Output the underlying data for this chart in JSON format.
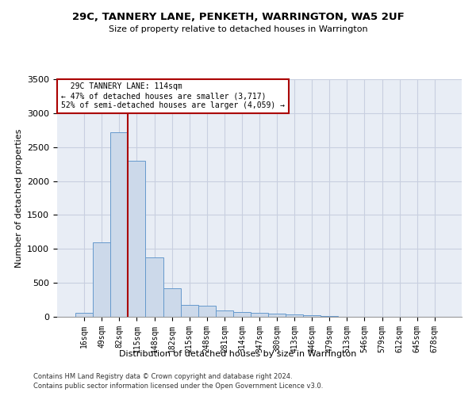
{
  "title": "29C, TANNERY LANE, PENKETH, WARRINGTON, WA5 2UF",
  "subtitle": "Size of property relative to detached houses in Warrington",
  "xlabel": "Distribution of detached houses by size in Warrington",
  "ylabel": "Number of detached properties",
  "bar_color": "#ccd9ea",
  "bar_edge_color": "#6699cc",
  "grid_color": "#c8cfe0",
  "bg_color": "#e8edf5",
  "categories": [
    "16sqm",
    "49sqm",
    "82sqm",
    "115sqm",
    "148sqm",
    "182sqm",
    "215sqm",
    "248sqm",
    "281sqm",
    "314sqm",
    "347sqm",
    "380sqm",
    "413sqm",
    "446sqm",
    "479sqm",
    "513sqm",
    "546sqm",
    "579sqm",
    "612sqm",
    "645sqm",
    "678sqm"
  ],
  "values": [
    55,
    1100,
    2720,
    2300,
    880,
    420,
    170,
    165,
    90,
    65,
    55,
    45,
    30,
    20,
    15,
    5,
    4,
    3,
    2,
    1,
    1
  ],
  "marker_idx": 2,
  "marker_label": "29C TANNERY LANE: 114sqm",
  "smaller_pct": "47% of detached houses are smaller (3,717)",
  "larger_pct": "52% of semi-detached houses are larger (4,059)",
  "ylim": [
    0,
    3500
  ],
  "yticks": [
    0,
    500,
    1000,
    1500,
    2000,
    2500,
    3000,
    3500
  ],
  "annotation_box_color": "#ffffff",
  "annotation_box_edge": "#aa0000",
  "marker_line_color": "#aa0000",
  "footer1": "Contains HM Land Registry data © Crown copyright and database right 2024.",
  "footer2": "Contains public sector information licensed under the Open Government Licence v3.0."
}
